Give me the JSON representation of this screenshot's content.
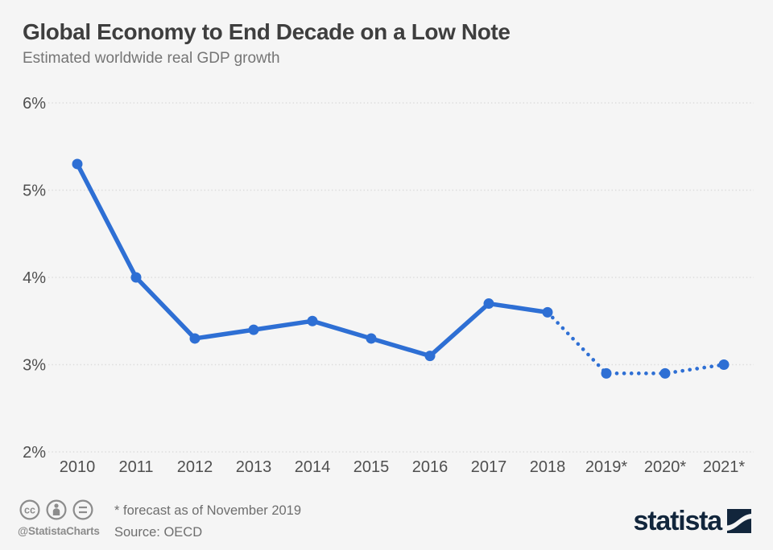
{
  "header": {
    "title": "Global Economy to End Decade on a Low Note",
    "subtitle": "Estimated worldwide real GDP growth"
  },
  "chart_data": {
    "type": "line",
    "title": "Global Economy to End Decade on a Low Note",
    "subtitle": "Estimated worldwide real GDP growth",
    "categories": [
      "2010",
      "2011",
      "2012",
      "2013",
      "2014",
      "2015",
      "2016",
      "2017",
      "2018",
      "2019*",
      "2020*",
      "2021*"
    ],
    "values": [
      5.3,
      4.0,
      3.3,
      3.4,
      3.5,
      3.3,
      3.1,
      3.7,
      3.6,
      2.9,
      2.9,
      3.0
    ],
    "unit": "%",
    "xlabel": "",
    "ylabel": "",
    "ylim": [
      2,
      6
    ],
    "ytick_values": [
      6,
      5,
      4,
      3,
      2
    ],
    "ytick_labels": [
      "6%",
      "5%",
      "4%",
      "3%",
      "2%"
    ],
    "grid": "horizontal-dotted",
    "legend": "none",
    "marker": "circle",
    "forecast_start_index": 8,
    "forecast_line_style": "dotted",
    "forecast_note": "* forecast as of November 2019"
  },
  "footer": {
    "handle": "@StatistaCharts",
    "note": "* forecast as of November 2019",
    "source": "Source: OECD",
    "brand": "statista",
    "license_icons": [
      "creative-commons-icon",
      "attribution-icon",
      "equals-icon"
    ]
  },
  "colors": {
    "background": "#f5f5f5",
    "line": "#2e6fd4",
    "title_text": "#3e3e3e",
    "subtitle_text": "#757575",
    "axis_text": "#4f4f4f",
    "gridline": "#dcdcdc",
    "footer_text": "#6e6e6e",
    "footer_icon": "#8c8c8c",
    "brand_navy": "#12263c"
  }
}
